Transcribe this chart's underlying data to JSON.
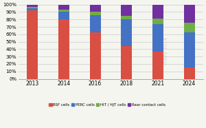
{
  "years": [
    "2013",
    "2014",
    "2016",
    "2018",
    "2021",
    "2024"
  ],
  "bsf": [
    92,
    80,
    63,
    44,
    37,
    15
  ],
  "perc": [
    3,
    10,
    23,
    36,
    37,
    48
  ],
  "hit": [
    2,
    3,
    4,
    5,
    7,
    13
  ],
  "rear": [
    3,
    7,
    10,
    15,
    19,
    24
  ],
  "colors": {
    "bsf": "#d94f43",
    "perc": "#4472c4",
    "hit": "#70ad47",
    "rear": "#7030a0"
  },
  "legend_labels": [
    "BSF cells",
    "PERC cells",
    "HIT / HJT cells",
    "Rear contact cells"
  ],
  "watermark": "ITRPV 2014",
  "ylim": [
    0,
    100
  ],
  "yticks": [
    0,
    10,
    20,
    30,
    40,
    50,
    60,
    70,
    80,
    90,
    100
  ],
  "ytick_labels": [
    "0%",
    "10%",
    "20%",
    "30%",
    "40%",
    "50%",
    "60%",
    "70%",
    "80%",
    "90%",
    "100%"
  ],
  "background_color": "#f5f5f0",
  "grid_color": "#d0d0d0",
  "bar_width": 0.35
}
